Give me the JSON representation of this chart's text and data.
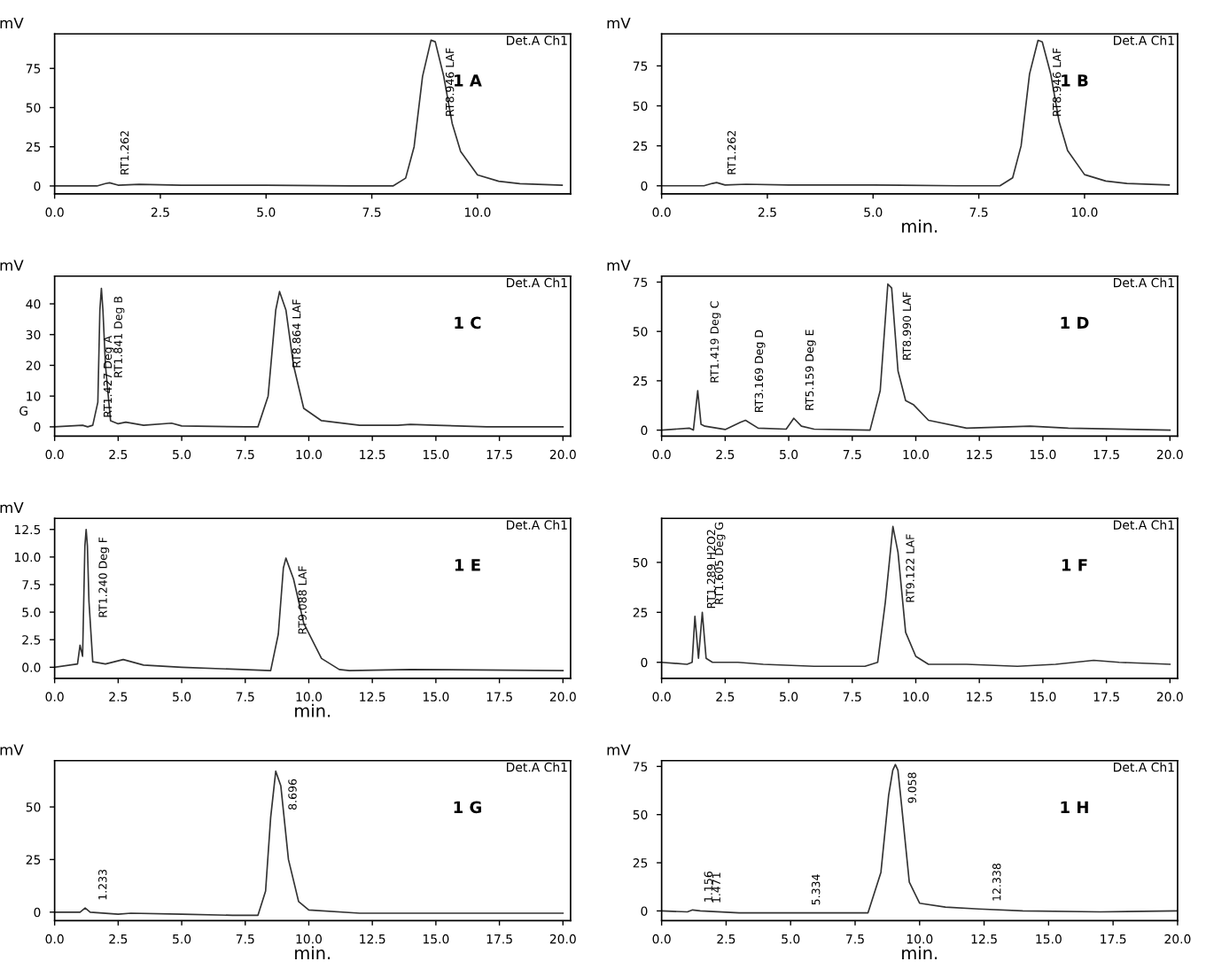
{
  "chart_data": [
    {
      "type": "line",
      "ylabel": "mV",
      "xlim": [
        0,
        12.2
      ],
      "ylim": [
        -5,
        97
      ],
      "xticks": [
        {
          "value": 0,
          "label": "0.0"
        },
        2.5,
        {
          "value": 5,
          "label": "5.0"
        },
        7.5,
        {
          "value": 10,
          "label": "10.0"
        }
      ],
      "yticks": [
        0,
        25,
        50,
        75
      ],
      "grid": false,
      "legend": false,
      "series": [
        {
          "color": "#333333",
          "x": [
            0,
            1.0,
            1.2,
            1.3,
            1.5,
            2,
            3,
            5,
            7,
            8,
            8.3,
            8.5,
            8.7,
            8.9,
            9.0,
            9.2,
            9.4,
            9.6,
            10,
            10.5,
            11,
            12
          ],
          "values": [
            0,
            0,
            1.5,
            2,
            0.5,
            1,
            0.5,
            0.5,
            0,
            0,
            5,
            25,
            70,
            93,
            92,
            70,
            40,
            22,
            7,
            3,
            1.5,
            0.5
          ]
        }
      ],
      "annotations": [
        "Det.A Ch1",
        "1 A",
        {
          "text": "RT1.262",
          "x": 1.26,
          "y": 2
        },
        {
          "text": "RT8.946 LAF",
          "x": 8.95,
          "y": 93
        }
      ]
    },
    {
      "type": "line",
      "ylabel": "mV",
      "xlabel": "min.",
      "xlim": [
        0,
        12.2
      ],
      "ylim": [
        -5,
        95
      ],
      "xticks": [
        {
          "value": 0,
          "label": "0.0"
        },
        2.5,
        {
          "value": 5,
          "label": "5.0"
        },
        7.5,
        {
          "value": 10,
          "label": "10.0"
        }
      ],
      "yticks": [
        0,
        25,
        50,
        75
      ],
      "grid": false,
      "legend": false,
      "series": [
        {
          "color": "#333333",
          "x": [
            0,
            1.0,
            1.2,
            1.3,
            1.5,
            2,
            3,
            5,
            7,
            8,
            8.3,
            8.5,
            8.7,
            8.9,
            9.0,
            9.2,
            9.4,
            9.6,
            10,
            10.5,
            11,
            12
          ],
          "values": [
            0,
            0,
            1.5,
            2,
            0.5,
            1,
            0.5,
            0.5,
            0,
            0,
            5,
            25,
            70,
            91,
            90,
            70,
            40,
            22,
            7,
            3,
            1.5,
            0.5
          ]
        }
      ],
      "annotations": [
        "Det.A Ch1",
        "1 B",
        {
          "text": "RT1.262",
          "x": 1.26,
          "y": 2
        },
        {
          "text": "RT8.946 LAF",
          "x": 8.95,
          "y": 91
        }
      ]
    },
    {
      "type": "line",
      "ylabel": "mV",
      "xlim": [
        0,
        20.3
      ],
      "ylim": [
        -3,
        49
      ],
      "xticks": [
        {
          "value": 0,
          "label": "0.0"
        },
        2.5,
        {
          "value": 5,
          "label": "5.0"
        },
        7.5,
        {
          "value": 10,
          "label": "10.0"
        },
        12.5,
        {
          "value": 15,
          "label": "15.0"
        },
        17.5,
        {
          "value": 20,
          "label": "20.0"
        }
      ],
      "yticks": [
        0,
        10,
        20,
        30,
        40
      ],
      "grid": false,
      "legend": false,
      "series": [
        {
          "color": "#333333",
          "x": [
            0,
            1.1,
            1.3,
            1.5,
            1.7,
            1.78,
            1.84,
            1.9,
            2.0,
            2.2,
            2.5,
            2.8,
            3.5,
            4.6,
            5,
            7.5,
            8.0,
            8.4,
            8.7,
            8.85,
            9.1,
            9.4,
            9.8,
            10.5,
            12,
            13.5,
            14,
            15,
            17,
            20
          ],
          "values": [
            0,
            0.5,
            0,
            0.5,
            8,
            38,
            45,
            38,
            20,
            2,
            1,
            1.5,
            0.5,
            1.2,
            0.3,
            0,
            0,
            10,
            38,
            44,
            38,
            20,
            6,
            2,
            0.5,
            0.5,
            0.8,
            0.5,
            0,
            0
          ]
        }
      ],
      "annotations": [
        "Det.A Ch1",
        "1 C",
        "G",
        {
          "text": "RT1.427 Deg A",
          "x": 1.43,
          "y": 0.5
        },
        {
          "text": "RT1.841 Deg B",
          "x": 1.84,
          "y": 45
        },
        {
          "text": "RT8.864 LAF",
          "x": 8.86,
          "y": 44
        }
      ]
    },
    {
      "type": "line",
      "ylabel": "mV",
      "xlim": [
        0,
        20.3
      ],
      "ylim": [
        -3,
        78
      ],
      "xticks": [
        {
          "value": 0,
          "label": "0.0"
        },
        2.5,
        {
          "value": 5,
          "label": "5.0"
        },
        7.5,
        {
          "value": 10,
          "label": "10.0"
        },
        12.5,
        {
          "value": 15,
          "label": "15.0"
        },
        17.5,
        {
          "value": 20,
          "label": "20.0"
        }
      ],
      "yticks": [
        0,
        25,
        50,
        75
      ],
      "grid": false,
      "legend": false,
      "series": [
        {
          "color": "#333333",
          "x": [
            0,
            1.1,
            1.25,
            1.42,
            1.55,
            1.7,
            2.5,
            3.1,
            3.3,
            3.8,
            4.9,
            5.2,
            5.5,
            6,
            8.2,
            8.6,
            8.9,
            9.05,
            9.3,
            9.6,
            9.9,
            10.5,
            12,
            14.5,
            16,
            20
          ],
          "values": [
            0,
            1,
            0,
            20,
            3,
            2,
            0.3,
            4,
            5,
            1,
            0.5,
            6,
            2,
            0.5,
            0,
            20,
            74,
            72,
            30,
            15,
            13,
            5,
            1,
            2,
            1,
            0
          ]
        }
      ],
      "annotations": [
        "Det.A Ch1",
        "1 D",
        {
          "text": "RT1.419 Deg C",
          "x": 1.42,
          "y": 20
        },
        {
          "text": "RT3.169 Deg D",
          "x": 3.17,
          "y": 5
        },
        {
          "text": "RT5.159 Deg E",
          "x": 5.16,
          "y": 6
        },
        {
          "text": "RT8.990 LAF",
          "x": 8.99,
          "y": 74
        }
      ]
    },
    {
      "type": "line",
      "ylabel": "mV",
      "xlabel": "min.",
      "xlim": [
        0,
        20.3
      ],
      "ylim": [
        -1,
        13.5
      ],
      "xticks": [
        {
          "value": 0,
          "label": "0.0"
        },
        2.5,
        {
          "value": 5,
          "label": "5.0"
        },
        7.5,
        {
          "value": 10,
          "label": "10.0"
        },
        12.5,
        {
          "value": 15,
          "label": "15.0"
        },
        17.5,
        {
          "value": 20,
          "label": "20.0"
        }
      ],
      "yticks": [
        {
          "value": 0,
          "label": "0.0"
        },
        2.5,
        {
          "value": 5,
          "label": "5.0"
        },
        7.5,
        {
          "value": 10,
          "label": "10.0"
        },
        12.5
      ],
      "grid": false,
      "legend": false,
      "series": [
        {
          "color": "#333333",
          "x": [
            0,
            0.9,
            1.0,
            1.1,
            1.19,
            1.24,
            1.29,
            1.35,
            1.5,
            2.0,
            2.7,
            3.5,
            5,
            8.5,
            8.8,
            9.0,
            9.1,
            9.4,
            9.8,
            10.5,
            11.2,
            11.6,
            14,
            20
          ],
          "values": [
            0,
            0.3,
            2,
            1,
            11,
            12.5,
            11,
            6,
            0.5,
            0.3,
            0.7,
            0.2,
            0,
            -0.3,
            3,
            9,
            9.9,
            8,
            4,
            0.8,
            -0.2,
            -0.3,
            -0.2,
            -0.3
          ]
        }
      ],
      "annotations": [
        "Det.A Ch1",
        "1 E",
        {
          "text": "RT1.240 Deg F",
          "x": 1.24,
          "y": 12.5
        },
        {
          "text": "RT9.088 LAF",
          "x": 9.09,
          "y": 9.9
        }
      ]
    },
    {
      "type": "line",
      "xlim": [
        0,
        20.3
      ],
      "ylim": [
        -8,
        72
      ],
      "xticks": [
        {
          "value": 0,
          "label": "0.0"
        },
        2.5,
        {
          "value": 5,
          "label": "5.0"
        },
        7.5,
        {
          "value": 10,
          "label": "10.0"
        },
        12.5,
        {
          "value": 15,
          "label": "15.0"
        },
        17.5,
        {
          "value": 20,
          "label": "20.0"
        }
      ],
      "yticks": [
        0,
        25,
        50
      ],
      "grid": false,
      "legend": false,
      "series": [
        {
          "color": "#333333",
          "x": [
            0,
            1.0,
            1.2,
            1.31,
            1.45,
            1.6,
            1.75,
            2.0,
            3,
            4,
            6,
            8,
            8.5,
            8.8,
            9.1,
            9.3,
            9.6,
            10,
            10.5,
            12,
            14,
            15.5,
            17,
            18,
            20
          ],
          "values": [
            0,
            -1,
            0,
            23,
            2,
            25,
            2,
            0,
            0,
            -1,
            -2,
            -2,
            0,
            30,
            68,
            55,
            15,
            3,
            -1,
            -1,
            -2,
            -1,
            1,
            0,
            -1
          ]
        }
      ],
      "annotations": [
        "Det.A Ch1",
        "1 F",
        {
          "text": "RT1.289 H2O2",
          "x": 1.29,
          "y": 23
        },
        {
          "text": "RT1.605 Deg G",
          "x": 1.6,
          "y": 25
        },
        {
          "text": "RT9.122 LAF",
          "x": 9.12,
          "y": 68
        }
      ]
    },
    {
      "type": "line",
      "ylabel": "mV",
      "xlabel": "min.",
      "xlim": [
        0,
        20.3
      ],
      "ylim": [
        -4,
        72
      ],
      "xticks": [
        {
          "value": 0,
          "label": "0.0"
        },
        2.5,
        {
          "value": 5,
          "label": "5.0"
        },
        7.5,
        {
          "value": 10,
          "label": "10.0"
        },
        12.5,
        {
          "value": 15,
          "label": "15.0"
        },
        17.5,
        {
          "value": 20,
          "label": "20.0"
        }
      ],
      "yticks": [
        0,
        25,
        50
      ],
      "grid": false,
      "legend": false,
      "series": [
        {
          "color": "#333333",
          "x": [
            0,
            1,
            1.2,
            1.4,
            2.5,
            3,
            5,
            7,
            8,
            8.3,
            8.5,
            8.7,
            8.9,
            9.2,
            9.6,
            10,
            12,
            15,
            20
          ],
          "values": [
            0,
            0,
            2,
            0,
            -1,
            -0.5,
            -1,
            -1.5,
            -1.5,
            10,
            45,
            67,
            60,
            25,
            5,
            1,
            -0.5,
            -0.5,
            -0.5
          ]
        }
      ],
      "annotations": [
        "Det.A Ch1",
        "1 G",
        {
          "text": "1.233",
          "x": 1.23,
          "y": 2
        },
        {
          "text": "8.696",
          "x": 8.7,
          "y": 67
        }
      ]
    },
    {
      "type": "line",
      "ylabel": "mV",
      "xlabel": "min.",
      "xlim": [
        0,
        20
      ],
      "ylim": [
        -5,
        78
      ],
      "xticks": [
        {
          "value": 0,
          "label": "0.0"
        },
        2.5,
        {
          "value": 5,
          "label": "5.0"
        },
        7.5,
        {
          "value": 10,
          "label": "10.0"
        },
        12.5,
        {
          "value": 15,
          "label": "15.0"
        },
        17.5,
        {
          "value": 20,
          "label": "20.0"
        }
      ],
      "yticks": [
        0,
        25,
        50,
        75
      ],
      "grid": false,
      "legend": false,
      "series": [
        {
          "color": "#333333",
          "x": [
            0,
            1,
            1.2,
            1.5,
            3,
            5.3,
            8,
            8.5,
            8.8,
            8.96,
            9.06,
            9.16,
            9.3,
            9.6,
            10,
            11,
            12.3,
            14,
            17,
            20
          ],
          "values": [
            0,
            -0.5,
            0.5,
            0,
            -1,
            -1,
            -1,
            20,
            60,
            73,
            76,
            73,
            55,
            15,
            4,
            2,
            1,
            0,
            -0.5,
            0
          ]
        }
      ],
      "annotations": [
        "Det.A Ch1",
        "1 H",
        {
          "text": "1.156",
          "x": 1.16,
          "y": 0.5
        },
        {
          "text": "1.471",
          "x": 1.47,
          "y": 0
        },
        {
          "text": "5.334",
          "x": 5.33,
          "y": -1
        },
        {
          "text": "9.058",
          "x": 9.06,
          "y": 76
        },
        {
          "text": "12.338",
          "x": 12.34,
          "y": 1
        }
      ]
    }
  ]
}
